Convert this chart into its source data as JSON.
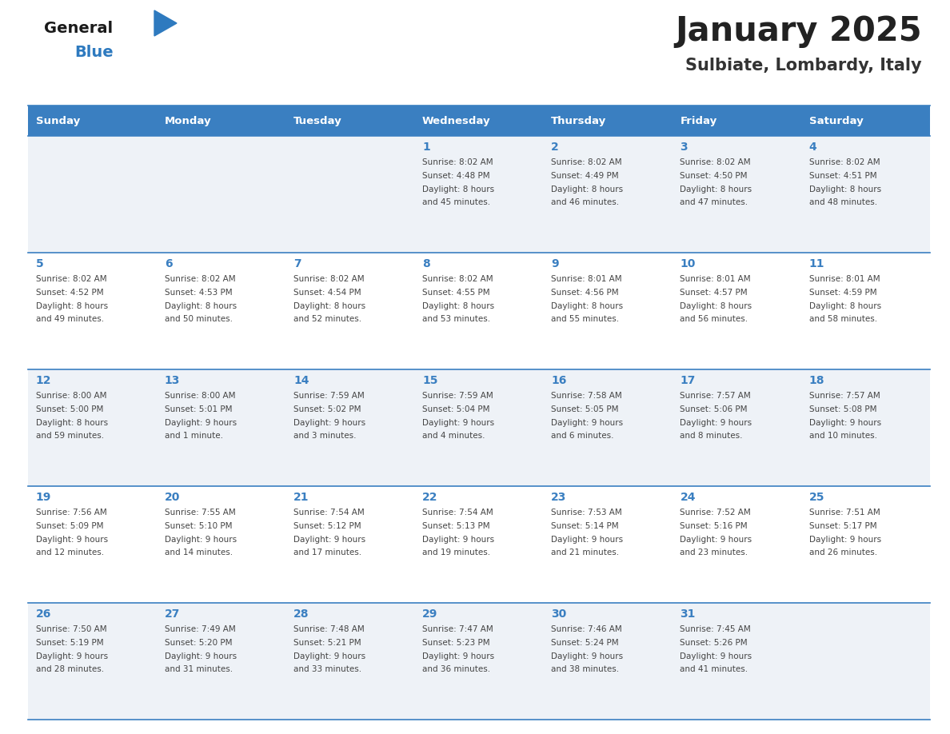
{
  "title": "January 2025",
  "subtitle": "Sulbiate, Lombardy, Italy",
  "days_of_week": [
    "Sunday",
    "Monday",
    "Tuesday",
    "Wednesday",
    "Thursday",
    "Friday",
    "Saturday"
  ],
  "header_bg_color": "#3a7fc1",
  "header_text_color": "#ffffff",
  "cell_bg_light": "#eef2f7",
  "cell_bg_white": "#ffffff",
  "cell_border_color": "#3a7fc1",
  "day_number_color": "#3a7fc1",
  "text_color": "#444444",
  "title_color": "#222222",
  "subtitle_color": "#333333",
  "logo_general_color": "#1a1a1a",
  "logo_blue_color": "#2e7abf",
  "logo_triangle_color": "#2e7abf",
  "calendar_data": [
    [
      {
        "day": null,
        "sunrise": null,
        "sunset": null,
        "daylight_line1": null,
        "daylight_line2": null
      },
      {
        "day": null,
        "sunrise": null,
        "sunset": null,
        "daylight_line1": null,
        "daylight_line2": null
      },
      {
        "day": null,
        "sunrise": null,
        "sunset": null,
        "daylight_line1": null,
        "daylight_line2": null
      },
      {
        "day": 1,
        "sunrise": "8:02 AM",
        "sunset": "4:48 PM",
        "daylight_line1": "Daylight: 8 hours",
        "daylight_line2": "and 45 minutes."
      },
      {
        "day": 2,
        "sunrise": "8:02 AM",
        "sunset": "4:49 PM",
        "daylight_line1": "Daylight: 8 hours",
        "daylight_line2": "and 46 minutes."
      },
      {
        "day": 3,
        "sunrise": "8:02 AM",
        "sunset": "4:50 PM",
        "daylight_line1": "Daylight: 8 hours",
        "daylight_line2": "and 47 minutes."
      },
      {
        "day": 4,
        "sunrise": "8:02 AM",
        "sunset": "4:51 PM",
        "daylight_line1": "Daylight: 8 hours",
        "daylight_line2": "and 48 minutes."
      }
    ],
    [
      {
        "day": 5,
        "sunrise": "8:02 AM",
        "sunset": "4:52 PM",
        "daylight_line1": "Daylight: 8 hours",
        "daylight_line2": "and 49 minutes."
      },
      {
        "day": 6,
        "sunrise": "8:02 AM",
        "sunset": "4:53 PM",
        "daylight_line1": "Daylight: 8 hours",
        "daylight_line2": "and 50 minutes."
      },
      {
        "day": 7,
        "sunrise": "8:02 AM",
        "sunset": "4:54 PM",
        "daylight_line1": "Daylight: 8 hours",
        "daylight_line2": "and 52 minutes."
      },
      {
        "day": 8,
        "sunrise": "8:02 AM",
        "sunset": "4:55 PM",
        "daylight_line1": "Daylight: 8 hours",
        "daylight_line2": "and 53 minutes."
      },
      {
        "day": 9,
        "sunrise": "8:01 AM",
        "sunset": "4:56 PM",
        "daylight_line1": "Daylight: 8 hours",
        "daylight_line2": "and 55 minutes."
      },
      {
        "day": 10,
        "sunrise": "8:01 AM",
        "sunset": "4:57 PM",
        "daylight_line1": "Daylight: 8 hours",
        "daylight_line2": "and 56 minutes."
      },
      {
        "day": 11,
        "sunrise": "8:01 AM",
        "sunset": "4:59 PM",
        "daylight_line1": "Daylight: 8 hours",
        "daylight_line2": "and 58 minutes."
      }
    ],
    [
      {
        "day": 12,
        "sunrise": "8:00 AM",
        "sunset": "5:00 PM",
        "daylight_line1": "Daylight: 8 hours",
        "daylight_line2": "and 59 minutes."
      },
      {
        "day": 13,
        "sunrise": "8:00 AM",
        "sunset": "5:01 PM",
        "daylight_line1": "Daylight: 9 hours",
        "daylight_line2": "and 1 minute."
      },
      {
        "day": 14,
        "sunrise": "7:59 AM",
        "sunset": "5:02 PM",
        "daylight_line1": "Daylight: 9 hours",
        "daylight_line2": "and 3 minutes."
      },
      {
        "day": 15,
        "sunrise": "7:59 AM",
        "sunset": "5:04 PM",
        "daylight_line1": "Daylight: 9 hours",
        "daylight_line2": "and 4 minutes."
      },
      {
        "day": 16,
        "sunrise": "7:58 AM",
        "sunset": "5:05 PM",
        "daylight_line1": "Daylight: 9 hours",
        "daylight_line2": "and 6 minutes."
      },
      {
        "day": 17,
        "sunrise": "7:57 AM",
        "sunset": "5:06 PM",
        "daylight_line1": "Daylight: 9 hours",
        "daylight_line2": "and 8 minutes."
      },
      {
        "day": 18,
        "sunrise": "7:57 AM",
        "sunset": "5:08 PM",
        "daylight_line1": "Daylight: 9 hours",
        "daylight_line2": "and 10 minutes."
      }
    ],
    [
      {
        "day": 19,
        "sunrise": "7:56 AM",
        "sunset": "5:09 PM",
        "daylight_line1": "Daylight: 9 hours",
        "daylight_line2": "and 12 minutes."
      },
      {
        "day": 20,
        "sunrise": "7:55 AM",
        "sunset": "5:10 PM",
        "daylight_line1": "Daylight: 9 hours",
        "daylight_line2": "and 14 minutes."
      },
      {
        "day": 21,
        "sunrise": "7:54 AM",
        "sunset": "5:12 PM",
        "daylight_line1": "Daylight: 9 hours",
        "daylight_line2": "and 17 minutes."
      },
      {
        "day": 22,
        "sunrise": "7:54 AM",
        "sunset": "5:13 PM",
        "daylight_line1": "Daylight: 9 hours",
        "daylight_line2": "and 19 minutes."
      },
      {
        "day": 23,
        "sunrise": "7:53 AM",
        "sunset": "5:14 PM",
        "daylight_line1": "Daylight: 9 hours",
        "daylight_line2": "and 21 minutes."
      },
      {
        "day": 24,
        "sunrise": "7:52 AM",
        "sunset": "5:16 PM",
        "daylight_line1": "Daylight: 9 hours",
        "daylight_line2": "and 23 minutes."
      },
      {
        "day": 25,
        "sunrise": "7:51 AM",
        "sunset": "5:17 PM",
        "daylight_line1": "Daylight: 9 hours",
        "daylight_line2": "and 26 minutes."
      }
    ],
    [
      {
        "day": 26,
        "sunrise": "7:50 AM",
        "sunset": "5:19 PM",
        "daylight_line1": "Daylight: 9 hours",
        "daylight_line2": "and 28 minutes."
      },
      {
        "day": 27,
        "sunrise": "7:49 AM",
        "sunset": "5:20 PM",
        "daylight_line1": "Daylight: 9 hours",
        "daylight_line2": "and 31 minutes."
      },
      {
        "day": 28,
        "sunrise": "7:48 AM",
        "sunset": "5:21 PM",
        "daylight_line1": "Daylight: 9 hours",
        "daylight_line2": "and 33 minutes."
      },
      {
        "day": 29,
        "sunrise": "7:47 AM",
        "sunset": "5:23 PM",
        "daylight_line1": "Daylight: 9 hours",
        "daylight_line2": "and 36 minutes."
      },
      {
        "day": 30,
        "sunrise": "7:46 AM",
        "sunset": "5:24 PM",
        "daylight_line1": "Daylight: 9 hours",
        "daylight_line2": "and 38 minutes."
      },
      {
        "day": 31,
        "sunrise": "7:45 AM",
        "sunset": "5:26 PM",
        "daylight_line1": "Daylight: 9 hours",
        "daylight_line2": "and 41 minutes."
      },
      {
        "day": null,
        "sunrise": null,
        "sunset": null,
        "daylight_line1": null,
        "daylight_line2": null
      }
    ]
  ],
  "figsize": [
    11.88,
    9.18
  ],
  "dpi": 100
}
